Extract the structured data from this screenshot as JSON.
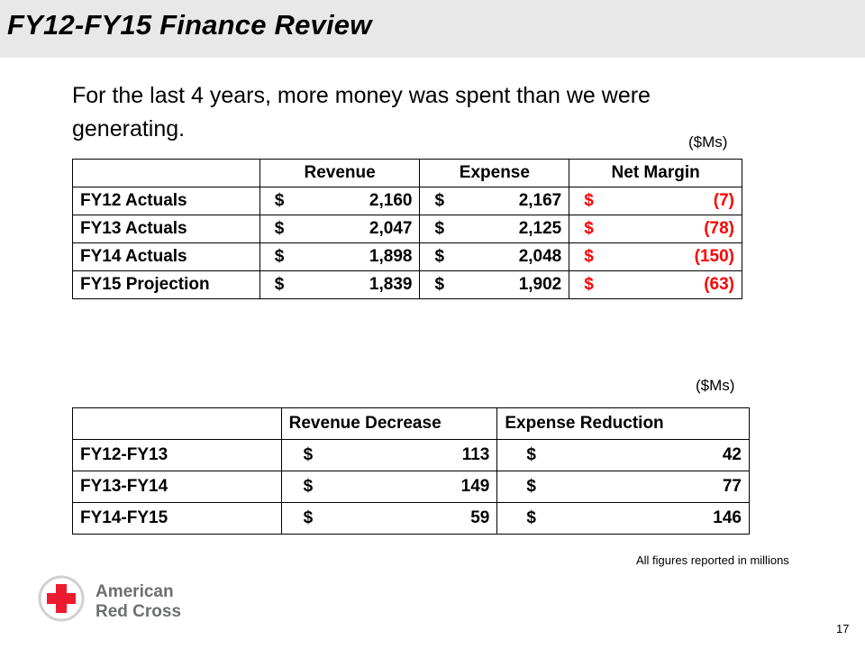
{
  "slide": {
    "title": "FY12-FY15 Finance Review",
    "subtitle": "For the last 4 years, more money was spent than we were generating.",
    "units_label_1": "($Ms)",
    "units_label_2": "($Ms)",
    "footnote": "All figures reported in millions",
    "page_number": "17"
  },
  "table1": {
    "headers": [
      "",
      "Revenue",
      "Expense",
      "Net Margin"
    ],
    "rows": [
      {
        "label": "FY12 Actuals",
        "revenue": "2,160",
        "expense": "2,167",
        "net": "(7)"
      },
      {
        "label": "FY13 Actuals",
        "revenue": "2,047",
        "expense": "2,125",
        "net": "(78)"
      },
      {
        "label": "FY14 Actuals",
        "revenue": "1,898",
        "expense": "2,048",
        "net": "(150)"
      },
      {
        "label": "FY15 Projection",
        "revenue": "1,839",
        "expense": "1,902",
        "net": "(63)"
      }
    ],
    "currency": "$"
  },
  "table2": {
    "headers": [
      "",
      "Revenue Decrease",
      "Expense Reduction"
    ],
    "rows": [
      {
        "label": "FY12-FY13",
        "revenue_decrease": "113",
        "expense_reduction": "42"
      },
      {
        "label": "FY13-FY14",
        "revenue_decrease": "149",
        "expense_reduction": "77"
      },
      {
        "label": "FY14-FY15",
        "revenue_decrease": "59",
        "expense_reduction": "146"
      }
    ],
    "currency": "$"
  },
  "logo": {
    "line1": "American",
    "line2": "Red Cross",
    "cross_color": "#ed1b2e",
    "text_color": "#6d6e71"
  },
  "colors": {
    "negative": "#ff0000",
    "title_bar": "#e8e8e8"
  }
}
